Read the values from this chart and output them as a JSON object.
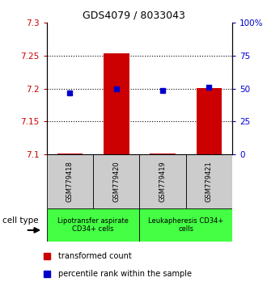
{
  "title": "GDS4079 / 8033043",
  "samples": [
    "GSM779418",
    "GSM779420",
    "GSM779419",
    "GSM779421"
  ],
  "red_values": [
    7.101,
    7.254,
    7.102,
    7.201
  ],
  "blue_values": [
    7.193,
    7.2,
    7.197,
    7.202
  ],
  "ylim_left": [
    7.1,
    7.3
  ],
  "ylim_right": [
    0,
    100
  ],
  "yticks_left": [
    7.1,
    7.15,
    7.2,
    7.25,
    7.3
  ],
  "yticks_right": [
    0,
    25,
    50,
    75,
    100
  ],
  "ytick_labels_left": [
    "7.1",
    "7.15",
    "7.2",
    "7.25",
    "7.3"
  ],
  "ytick_labels_right": [
    "0",
    "25",
    "50",
    "75",
    "100%"
  ],
  "bar_color": "#cc0000",
  "dot_color": "#0000cc",
  "bar_bottom": 7.1,
  "legend_red_label": "transformed count",
  "legend_blue_label": "percentile rank within the sample",
  "cell_type_label": "cell type",
  "group1_label": "Lipotransfer aspirate\nCD34+ cells",
  "group2_label": "Leukapheresis CD34+\ncells",
  "group_color": "#44ff44",
  "sample_box_color": "#cccccc",
  "bar_width": 0.55,
  "title_fontsize": 9,
  "tick_fontsize": 7.5,
  "sample_fontsize": 6,
  "group_fontsize": 6,
  "legend_fontsize": 7
}
